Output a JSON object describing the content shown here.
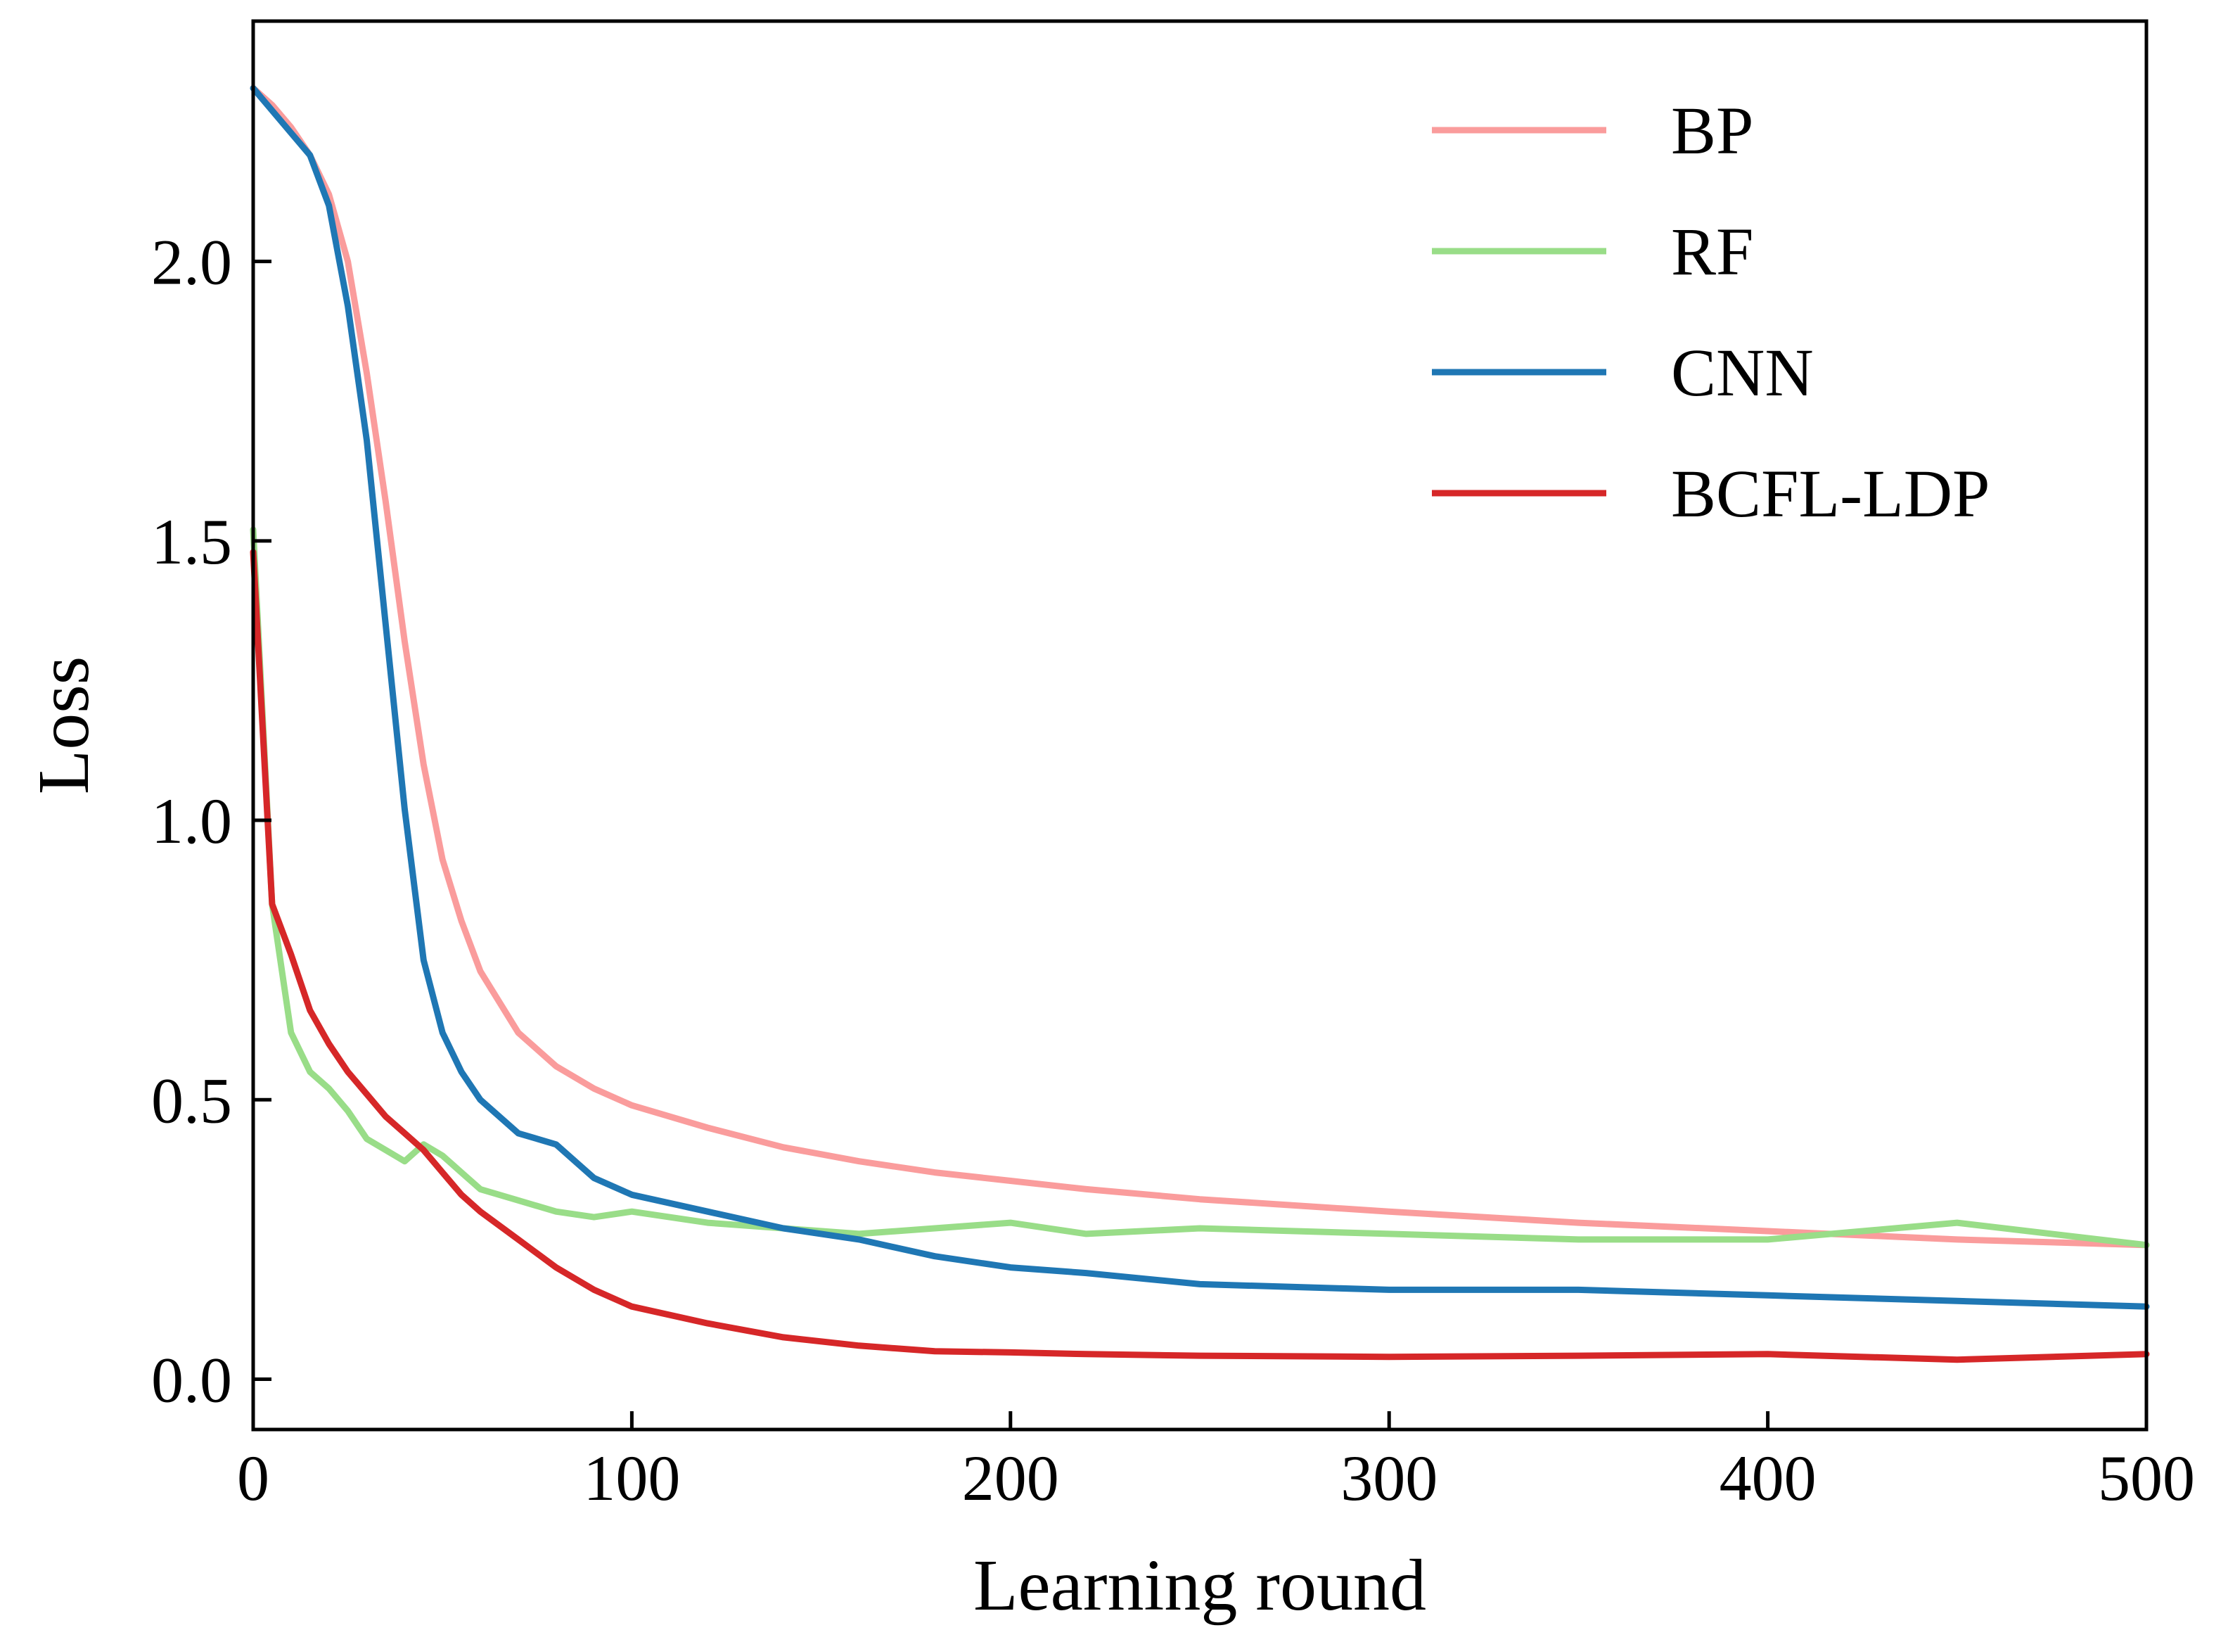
{
  "chart_data": {
    "type": "line",
    "title": "",
    "xlabel": "Learning round",
    "ylabel": "Loss",
    "xlim": [
      0,
      500
    ],
    "ylim": [
      -0.09,
      2.43
    ],
    "xticks": [
      0,
      100,
      200,
      300,
      400,
      500
    ],
    "xtick_labels": [
      "0",
      "100",
      "200",
      "300",
      "400",
      "500"
    ],
    "yticks": [
      0.0,
      0.5,
      1.0,
      1.5,
      2.0
    ],
    "ytick_labels": [
      "0.0",
      "0.5",
      "1.0",
      "1.5",
      "2.0"
    ],
    "grid": false,
    "legend_position": "top-right",
    "x": [
      0,
      5,
      10,
      15,
      20,
      25,
      30,
      35,
      40,
      45,
      50,
      55,
      60,
      70,
      80,
      90,
      100,
      120,
      140,
      160,
      180,
      200,
      220,
      250,
      300,
      350,
      400,
      450,
      500
    ],
    "series": [
      {
        "name": "BP",
        "color": "#fa9c9c",
        "values": [
          2.31,
          2.28,
          2.24,
          2.19,
          2.12,
          2.0,
          1.8,
          1.57,
          1.32,
          1.1,
          0.93,
          0.82,
          0.73,
          0.62,
          0.56,
          0.52,
          0.49,
          0.45,
          0.415,
          0.39,
          0.37,
          0.355,
          0.34,
          0.322,
          0.3,
          0.28,
          0.265,
          0.25,
          0.24
        ]
      },
      {
        "name": "RF",
        "color": "#99dd88",
        "values": [
          1.52,
          0.85,
          0.62,
          0.55,
          0.52,
          0.48,
          0.43,
          0.41,
          0.39,
          0.42,
          0.4,
          0.37,
          0.34,
          0.32,
          0.3,
          0.29,
          0.3,
          0.28,
          0.27,
          0.26,
          0.27,
          0.28,
          0.26,
          0.27,
          0.26,
          0.25,
          0.25,
          0.28,
          0.24
        ]
      },
      {
        "name": "CNN",
        "color": "#1f77b4",
        "values": [
          2.31,
          2.27,
          2.23,
          2.19,
          2.1,
          1.92,
          1.68,
          1.35,
          1.02,
          0.75,
          0.62,
          0.55,
          0.5,
          0.44,
          0.42,
          0.36,
          0.33,
          0.3,
          0.27,
          0.25,
          0.22,
          0.2,
          0.19,
          0.17,
          0.16,
          0.16,
          0.15,
          0.14,
          0.13
        ]
      },
      {
        "name": "BCFL-LDP",
        "color": "#d62728",
        "values": [
          1.48,
          0.85,
          0.76,
          0.66,
          0.6,
          0.55,
          0.51,
          0.47,
          0.44,
          0.41,
          0.37,
          0.33,
          0.3,
          0.25,
          0.2,
          0.16,
          0.13,
          0.1,
          0.075,
          0.06,
          0.05,
          0.048,
          0.045,
          0.042,
          0.04,
          0.042,
          0.045,
          0.035,
          0.045
        ]
      }
    ]
  }
}
